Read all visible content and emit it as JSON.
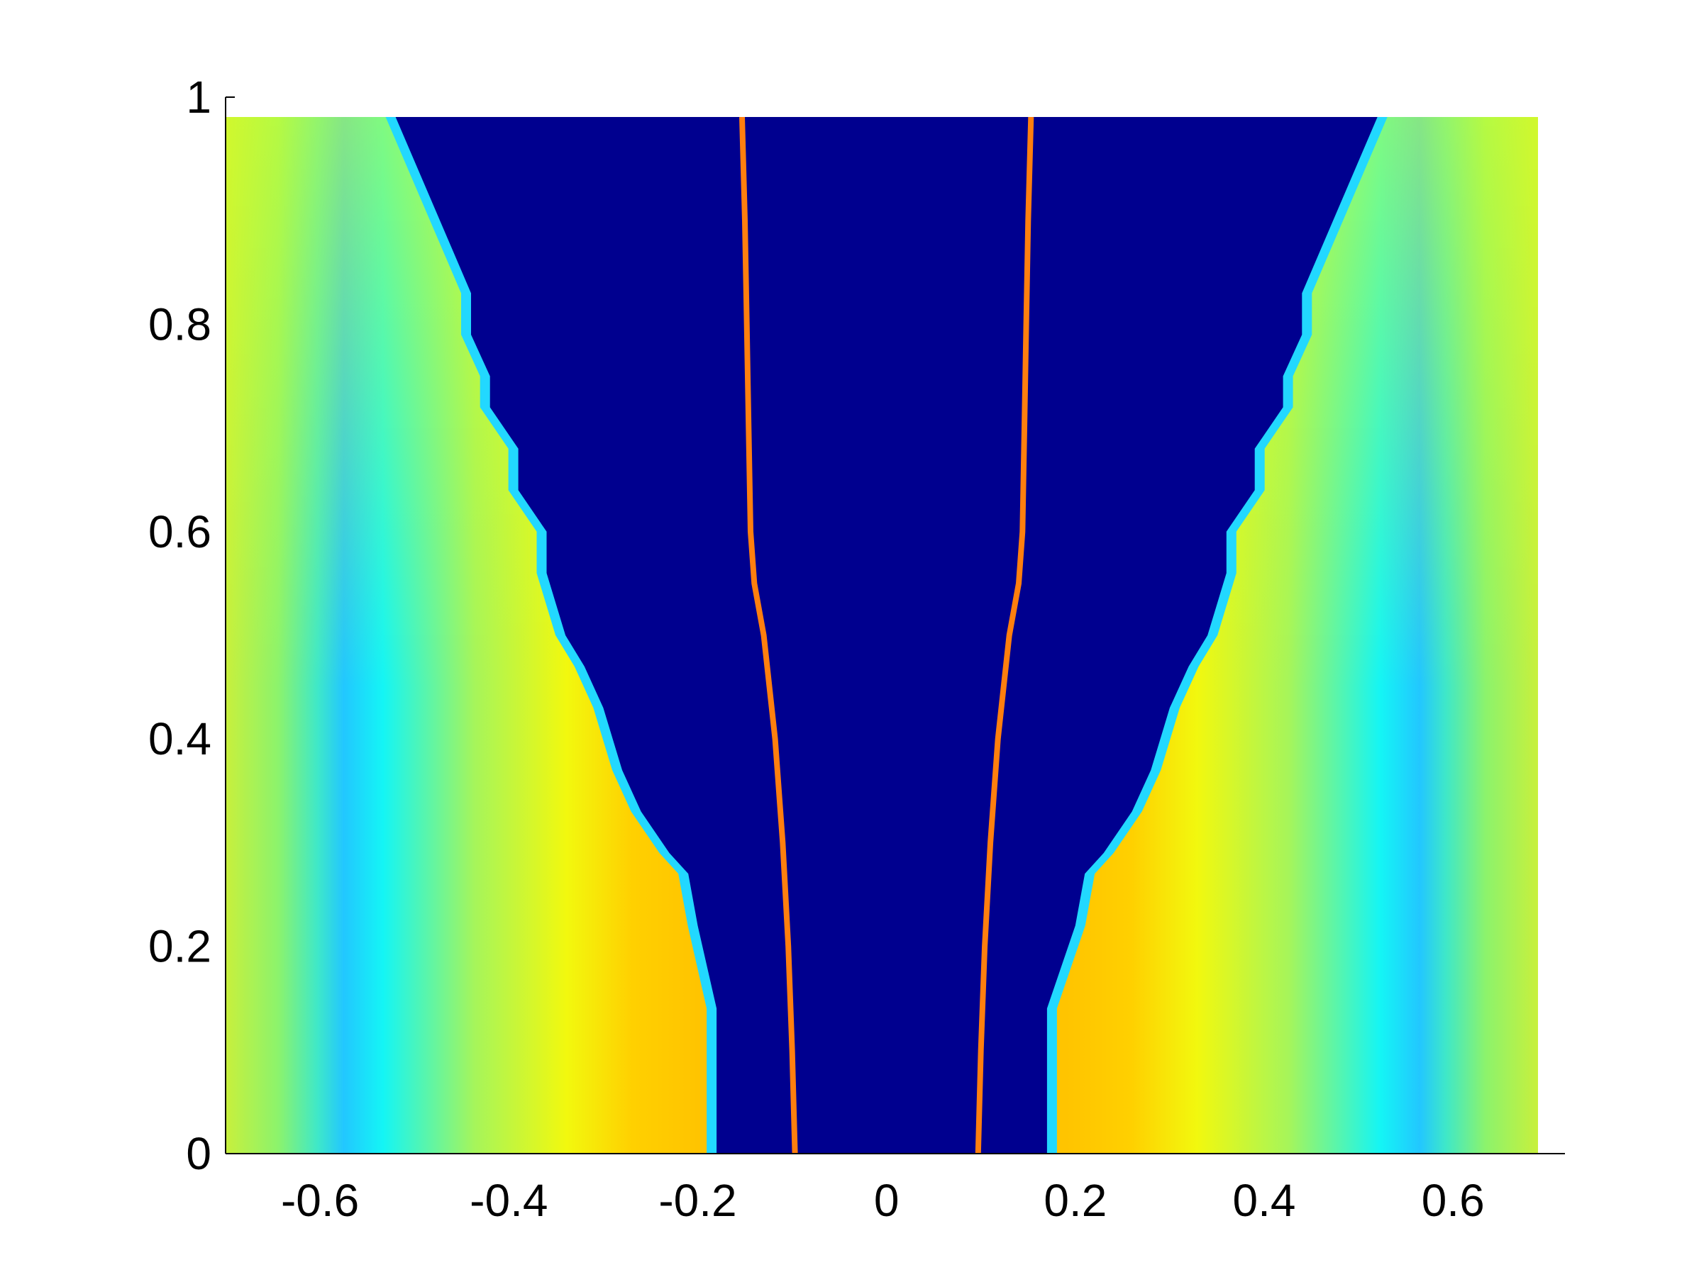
{
  "chart_data": {
    "type": "heatmap",
    "title": "",
    "xlabel": "",
    "ylabel": "",
    "xlim": [
      -0.7,
      0.69
    ],
    "ylim": [
      0,
      1
    ],
    "x_ticks": [
      -0.6,
      -0.4,
      -0.2,
      0,
      0.2,
      0.4,
      0.6
    ],
    "x_tick_labels": [
      "-0.6",
      "-0.4",
      "-0.2",
      "0",
      "0.2",
      "0.4",
      "0.6"
    ],
    "y_ticks": [
      0,
      0.2,
      0.4,
      0.6,
      0.8,
      1
    ],
    "y_tick_labels": [
      "0",
      "0.2",
      "0.4",
      "0.6",
      "0.8",
      "1"
    ],
    "colormap": "jet",
    "background_color": "#00008f",
    "colormap_colors": [
      "#00008f",
      "#0000ff",
      "#00ffff",
      "#ffff00",
      "#ff8000"
    ],
    "low_region_boundary": {
      "y": [
        0,
        0.14,
        0.22,
        0.27,
        0.29,
        0.33,
        0.37,
        0.4,
        0.43,
        0.47,
        0.5,
        0.56,
        0.6,
        0.64,
        0.68,
        0.72,
        0.75,
        0.79,
        0.83,
        1.0
      ],
      "x_left": [
        -0.18,
        -0.18,
        -0.2,
        -0.21,
        -0.23,
        -0.26,
        -0.28,
        -0.29,
        -0.3,
        -0.32,
        -0.34,
        -0.36,
        -0.36,
        -0.39,
        -0.39,
        -0.42,
        -0.42,
        -0.44,
        -0.44,
        -0.52
      ],
      "x_right": [
        0.17,
        0.17,
        0.2,
        0.21,
        0.23,
        0.26,
        0.28,
        0.29,
        0.3,
        0.32,
        0.34,
        0.36,
        0.36,
        0.39,
        0.39,
        0.42,
        0.42,
        0.44,
        0.44,
        0.52
      ]
    },
    "series": [
      {
        "color": "#ff7f0e",
        "x": [
          -0.097,
          -0.1,
          -0.104,
          -0.11,
          -0.118,
          -0.124,
          -0.13,
          -0.14,
          -0.144,
          -0.146,
          -0.148,
          -0.15,
          -0.153
        ],
        "y": [
          0,
          0.1,
          0.2,
          0.3,
          0.4,
          0.45,
          0.5,
          0.55,
          0.6,
          0.7,
          0.8,
          0.9,
          1.0
        ]
      },
      {
        "color": "#ff7f0e",
        "x": [
          0.097,
          0.1,
          0.104,
          0.11,
          0.118,
          0.124,
          0.13,
          0.14,
          0.144,
          0.146,
          0.148,
          0.15,
          0.153
        ],
        "y": [
          0,
          0.1,
          0.2,
          0.3,
          0.4,
          0.45,
          0.5,
          0.55,
          0.6,
          0.7,
          0.8,
          0.9,
          1.0
        ]
      }
    ]
  }
}
